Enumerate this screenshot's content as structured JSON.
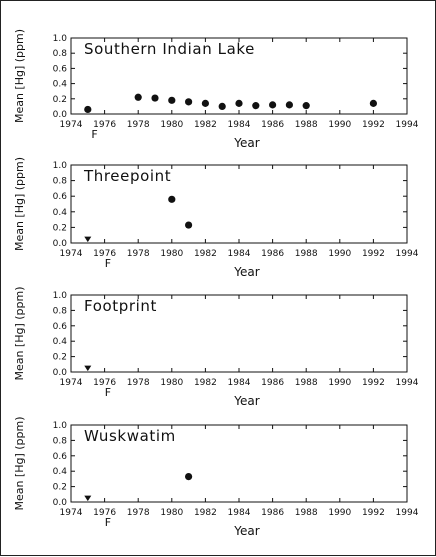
{
  "figure": {
    "border_color": "#222222",
    "marker_color": "#111111"
  },
  "chart_data": [
    {
      "type": "scatter",
      "title": "Southern Indian Lake",
      "xlabel": "Year",
      "ylabel": "Mean [Hg] (ppm)",
      "xlim": [
        1974,
        1994
      ],
      "ylim": [
        0.0,
        1.0
      ],
      "xticks": [
        "1974",
        "1976",
        "1978",
        "1980",
        "1982",
        "1984",
        "1986",
        "1988",
        "1990",
        "1992",
        "1994"
      ],
      "yticks": [
        "0.0",
        "0.2",
        "0.4",
        "0.6",
        "0.8",
        "1.0"
      ],
      "flag": {
        "text": "F",
        "x": 1975.4
      },
      "points": [
        {
          "x": 1975,
          "y": 0.06
        },
        {
          "x": 1978,
          "y": 0.22
        },
        {
          "x": 1979,
          "y": 0.21
        },
        {
          "x": 1980,
          "y": 0.18
        },
        {
          "x": 1981,
          "y": 0.16
        },
        {
          "x": 1982,
          "y": 0.14
        },
        {
          "x": 1983,
          "y": 0.1
        },
        {
          "x": 1984,
          "y": 0.14
        },
        {
          "x": 1985,
          "y": 0.11
        },
        {
          "x": 1986,
          "y": 0.12
        },
        {
          "x": 1987,
          "y": 0.12
        },
        {
          "x": 1988,
          "y": 0.11
        },
        {
          "x": 1992,
          "y": 0.14
        }
      ],
      "triangles": []
    },
    {
      "type": "scatter",
      "title": "Threepoint",
      "xlabel": "Year",
      "ylabel": "Mean [Hg] (ppm)",
      "xlim": [
        1974,
        1994
      ],
      "ylim": [
        0.0,
        1.0
      ],
      "xticks": [
        "1974",
        "1976",
        "1978",
        "1980",
        "1982",
        "1984",
        "1986",
        "1988",
        "1990",
        "1992",
        "1994"
      ],
      "yticks": [
        "0.0",
        "0.2",
        "0.4",
        "0.6",
        "0.8",
        "1.0"
      ],
      "flag": {
        "text": "F",
        "x": 1976.2
      },
      "points": [
        {
          "x": 1980,
          "y": 0.56
        },
        {
          "x": 1981,
          "y": 0.23
        }
      ],
      "triangles": [
        {
          "x": 1975,
          "y": 0.05
        }
      ]
    },
    {
      "type": "scatter",
      "title": "Footprint",
      "xlabel": "Year",
      "ylabel": "Mean [Hg] (ppm)",
      "xlim": [
        1974,
        1994
      ],
      "ylim": [
        0.0,
        1.0
      ],
      "xticks": [
        "1974",
        "1976",
        "1978",
        "1980",
        "1982",
        "1984",
        "1986",
        "1988",
        "1990",
        "1992",
        "1994"
      ],
      "yticks": [
        "0.0",
        "0.2",
        "0.4",
        "0.6",
        "0.8",
        "1.0"
      ],
      "flag": {
        "text": "F",
        "x": 1976.2
      },
      "points": [],
      "triangles": [
        {
          "x": 1975,
          "y": 0.05
        }
      ]
    },
    {
      "type": "scatter",
      "title": "Wuskwatim",
      "xlabel": "Year",
      "ylabel": "Mean [Hg] (ppm)",
      "xlim": [
        1974,
        1994
      ],
      "ylim": [
        0.0,
        1.0
      ],
      "xticks": [
        "1974",
        "1976",
        "1978",
        "1980",
        "1982",
        "1984",
        "1986",
        "1988",
        "1990",
        "1992",
        "1994"
      ],
      "yticks": [
        "0.0",
        "0.2",
        "0.4",
        "0.6",
        "0.8",
        "1.0"
      ],
      "flag": {
        "text": "F",
        "x": 1976.2
      },
      "points": [
        {
          "x": 1981,
          "y": 0.33
        }
      ],
      "triangles": [
        {
          "x": 1975,
          "y": 0.05
        }
      ]
    }
  ]
}
